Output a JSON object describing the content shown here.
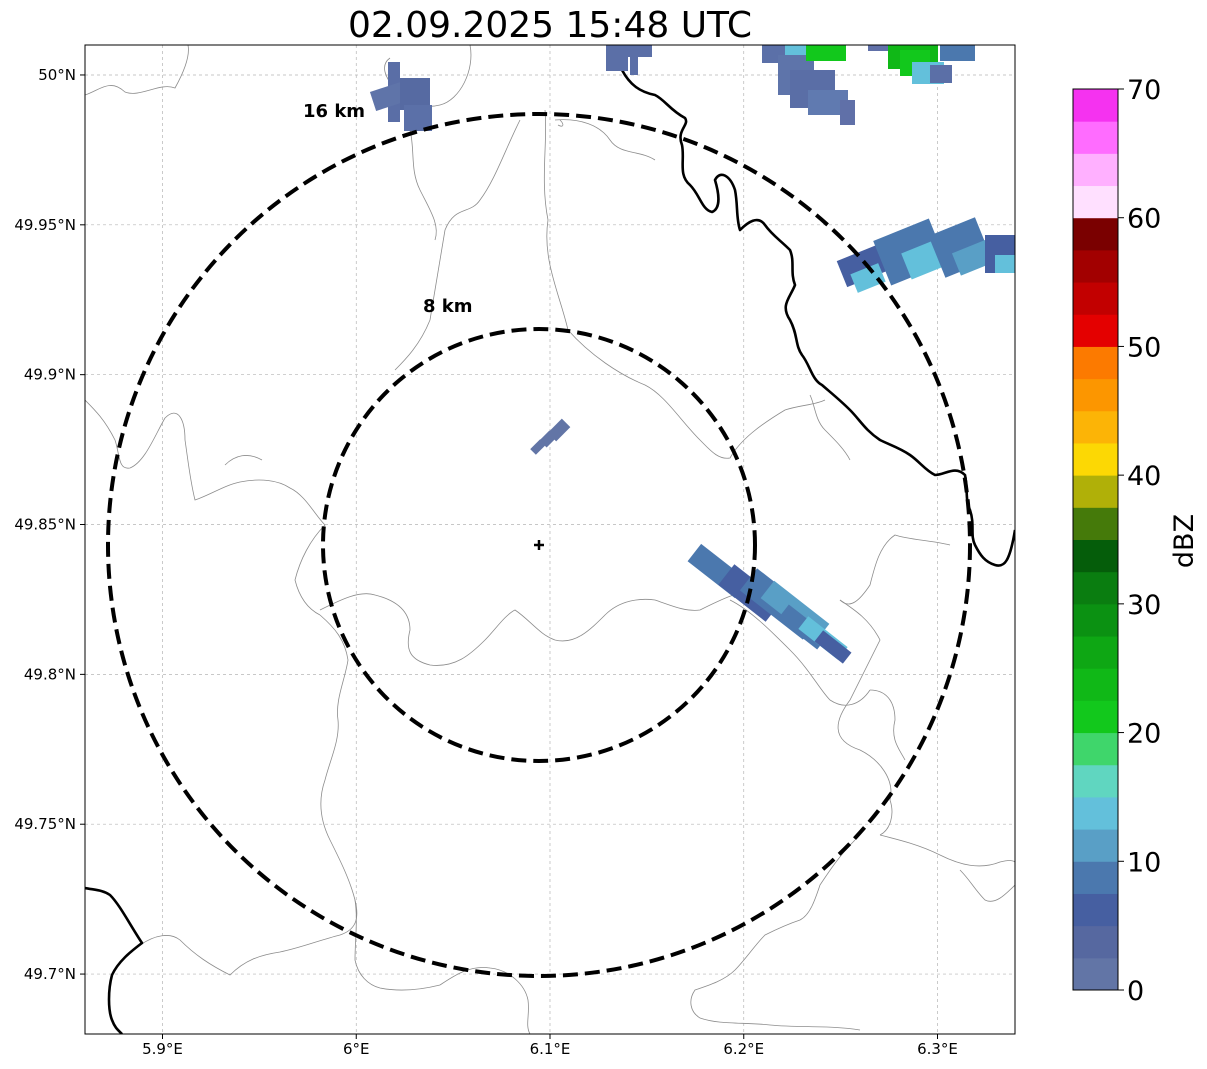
{
  "title": "02.09.2025 15:48 UTC",
  "map": {
    "lon_range": [
      5.86,
      6.34
    ],
    "lat_range": [
      49.68,
      50.01
    ],
    "center": {
      "lon": 6.095,
      "lat": 49.843
    },
    "x_ticks": [
      {
        "value": 5.9,
        "label": "5.9°E"
      },
      {
        "value": 6.0,
        "label": "6°E"
      },
      {
        "value": 6.1,
        "label": "6.1°E"
      },
      {
        "value": 6.2,
        "label": "6.2°E"
      },
      {
        "value": 6.3,
        "label": "6.3°E"
      }
    ],
    "y_ticks": [
      {
        "value": 50.0,
        "label": "50°N"
      },
      {
        "value": 49.95,
        "label": "49.95°N"
      },
      {
        "value": 49.9,
        "label": "49.9°N"
      },
      {
        "value": 49.85,
        "label": "49.85°N"
      },
      {
        "value": 49.8,
        "label": "49.8°N"
      },
      {
        "value": 49.75,
        "label": "49.75°N"
      },
      {
        "value": 49.7,
        "label": "49.7°N"
      }
    ],
    "rings": [
      {
        "label": "8 km",
        "radius_km": 8
      },
      {
        "label": "16 km",
        "radius_km": 16
      }
    ],
    "grid": true
  },
  "colorbar": {
    "label": "dBZ",
    "ticks": [
      "0",
      "10",
      "20",
      "30",
      "40",
      "50",
      "60",
      "70"
    ],
    "colors": [
      "#6275a6",
      "#5668a0",
      "#465fa1",
      "#4b78ae",
      "#599fc6",
      "#63c0db",
      "#60d6c0",
      "#3fd66b",
      "#12c81c",
      "#10b817",
      "#0ea714",
      "#0b9112",
      "#0a7d10",
      "#055d0a",
      "#457a0a",
      "#b0b008",
      "#fcd804",
      "#fcb406",
      "#fc9600",
      "#fc7a00",
      "#e40000",
      "#c20000",
      "#a20000",
      "#7a0000",
      "#ffe0ff",
      "#ffb0ff",
      "#ff6cff",
      "#f532f0"
    ]
  }
}
